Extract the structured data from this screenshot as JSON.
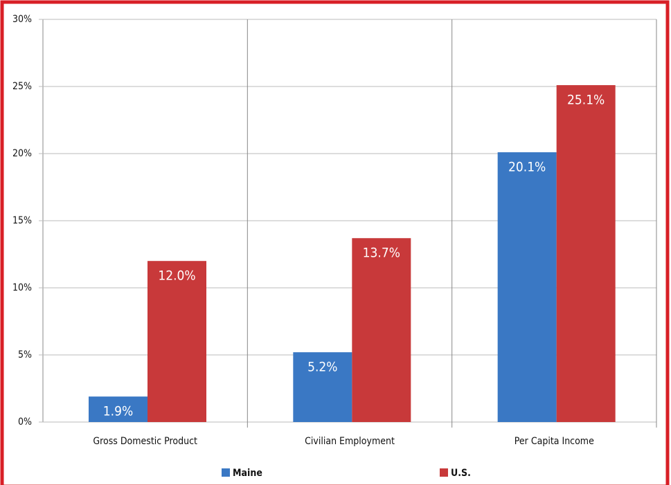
{
  "chart_data": {
    "type": "bar",
    "categories": [
      "Gross Domestic Product",
      "Civilian Employment",
      "Per Capita Income"
    ],
    "series": [
      {
        "name": "Maine",
        "color": "#3a78c4",
        "values": [
          1.9,
          5.2,
          20.1
        ],
        "value_labels": [
          "1.9%",
          "5.2%",
          "20.1%"
        ]
      },
      {
        "name": "U.S.",
        "color": "#c8393a",
        "values": [
          12.0,
          13.7,
          25.1
        ],
        "value_labels": [
          "12.0%",
          "13.7%",
          "25.1%"
        ]
      }
    ],
    "ylim": [
      0,
      30
    ],
    "yticks": [
      {
        "value": 0,
        "label": "0%"
      },
      {
        "value": 5,
        "label": "5%"
      },
      {
        "value": 10,
        "label": "10%"
      },
      {
        "value": 15,
        "label": "15%"
      },
      {
        "value": 20,
        "label": "20%"
      },
      {
        "value": 25,
        "label": "25%"
      },
      {
        "value": 30,
        "label": "30%"
      }
    ],
    "grid": true
  }
}
